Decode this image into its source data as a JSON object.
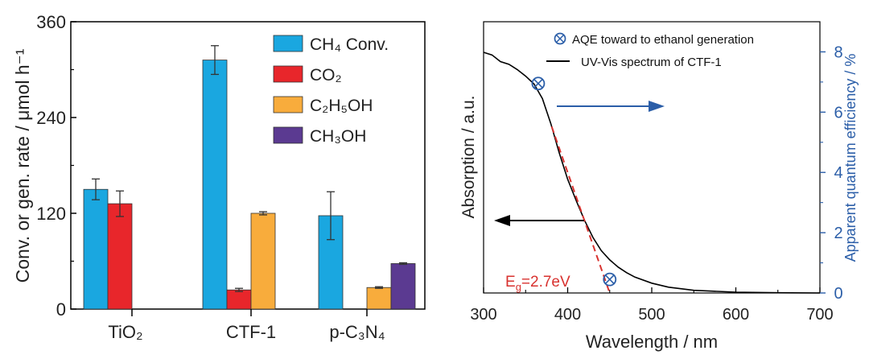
{
  "chart_data": [
    {
      "type": "bar",
      "categories": [
        "TiO₂",
        "CTF-1",
        "p-C₃N₄"
      ],
      "ylabel": "Conv. or gen. rate / μmol h⁻¹",
      "ylim": [
        0,
        360
      ],
      "yticks": [
        "0",
        "120",
        "240",
        "360"
      ],
      "series": [
        {
          "name": "CH₄ Conv.",
          "color": "#1aa7e0",
          "values": [
            150,
            312,
            117
          ],
          "errors": [
            13,
            18,
            30
          ]
        },
        {
          "name": "CO₂",
          "color": "#e8262b",
          "values": [
            132,
            24,
            null
          ],
          "errors": [
            16,
            2,
            null
          ]
        },
        {
          "name": "C₂H₅OH",
          "color": "#f8ac3c",
          "values": [
            null,
            120,
            27
          ],
          "errors": [
            null,
            2,
            1
          ]
        },
        {
          "name": "CH₃OH",
          "color": "#5b3a91",
          "values": [
            null,
            null,
            57
          ],
          "errors": [
            null,
            null,
            1
          ]
        }
      ],
      "legend_position": "top-right"
    },
    {
      "type": "line",
      "xlabel": "Wavelength / nm",
      "ylabel_left": "Absorption / a.u.",
      "ylabel_right": "Apparent quantum efficiency / %",
      "xlim": [
        300,
        700
      ],
      "y_right_lim": [
        0,
        9
      ],
      "xticks": [
        "300",
        "400",
        "500",
        "600",
        "700"
      ],
      "y_right_ticks": [
        "0",
        "2",
        "4",
        "6",
        "8"
      ],
      "spectrum": {
        "name": "UV-Vis spectrum of CTF-1",
        "x": [
          300,
          310,
          320,
          330,
          340,
          350,
          360,
          370,
          380,
          390,
          400,
          410,
          420,
          430,
          440,
          450,
          460,
          470,
          480,
          500,
          520,
          550,
          600,
          650,
          700
        ],
        "y": [
          0.91,
          0.9,
          0.875,
          0.865,
          0.845,
          0.82,
          0.79,
          0.735,
          0.64,
          0.53,
          0.43,
          0.35,
          0.275,
          0.21,
          0.16,
          0.125,
          0.098,
          0.077,
          0.06,
          0.037,
          0.022,
          0.01,
          0.003,
          0.001,
          0.0
        ]
      },
      "aqe": {
        "name": "AQE toward to ethanol generation",
        "x": [
          365,
          450
        ],
        "y": [
          6.95,
          0.45
        ]
      },
      "tangent_x": [
        381,
        450
      ],
      "bandgap_label": "E",
      "bandgap_sub": "g",
      "bandgap_value": "=2.7eV",
      "colors": {
        "axis_right": "#2b5ea8",
        "tangent": "#d8322f",
        "spectrum": "#000000",
        "left_arrow": "#000000"
      }
    }
  ]
}
